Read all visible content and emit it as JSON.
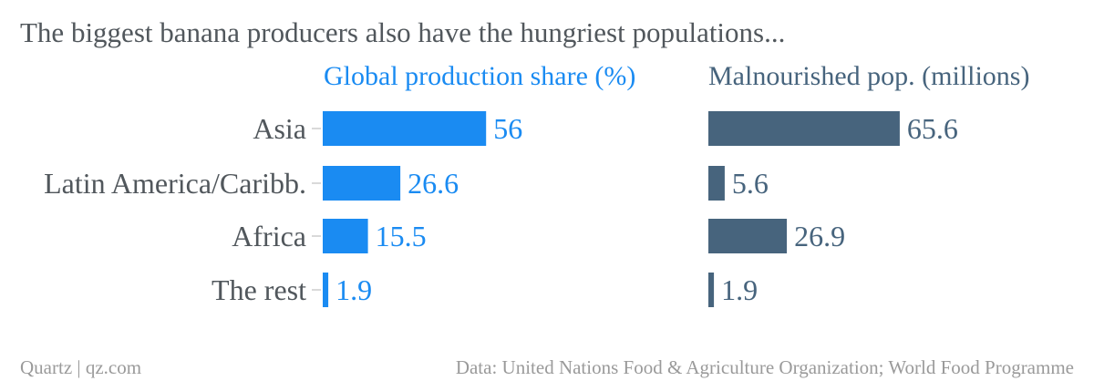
{
  "title": "The biggest banana producers also have the hungriest populations...",
  "footer": {
    "source_left": "Quartz | qz.com",
    "source_right": "Data: United Nations Food & Agriculture Organization; World Food Programme"
  },
  "colors": {
    "production": "#1a8bf2",
    "malnourished": "#47647d",
    "text": "#51575c",
    "footer": "#9a9a9a",
    "tick": "#cccccc"
  },
  "chart_data": [
    {
      "type": "bar",
      "orientation": "horizontal",
      "title": "Global production share (%)",
      "categories": [
        "Asia",
        "Latin America/Caribb.",
        "Africa",
        "The rest"
      ],
      "values": [
        56,
        26.6,
        15.5,
        1.9
      ],
      "value_labels": [
        "56",
        "26.6",
        "15.5",
        "1.9"
      ],
      "xlim": [
        0,
        100
      ],
      "grid": false
    },
    {
      "type": "bar",
      "orientation": "horizontal",
      "title": "Malnourished pop. (millions)",
      "categories": [
        "Asia",
        "Latin America/Caribb.",
        "Africa",
        "The rest"
      ],
      "values": [
        65.6,
        5.6,
        26.9,
        1.9
      ],
      "value_labels": [
        "65.6",
        "5.6",
        "26.9",
        "1.9"
      ],
      "xlim": [
        0,
        100
      ],
      "grid": false
    }
  ]
}
